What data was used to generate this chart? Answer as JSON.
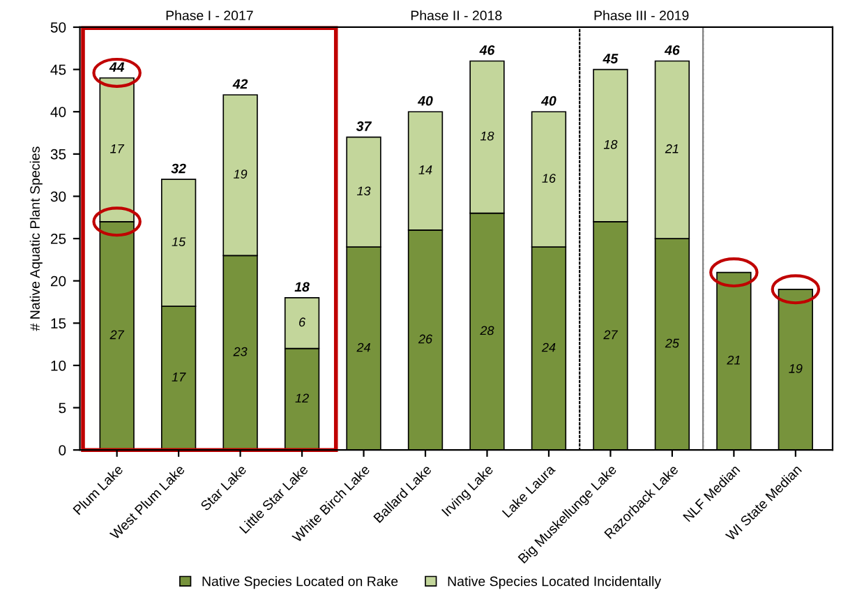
{
  "chart_data": {
    "type": "bar",
    "stacked": true,
    "ylabel": "# Native Aquatic Plant Species",
    "categories": [
      "Plum Lake",
      "West Plum Lake",
      "Star Lake",
      "Little Star Lake",
      "White Birch Lake",
      "Ballard Lake",
      "Irving Lake",
      "Lake Laura",
      "Big Muskellunge Lake",
      "Razorback Lake",
      "NLF Median",
      "WI State Median"
    ],
    "series": [
      {
        "name": "Native Species Located on Rake",
        "color": "#77933c",
        "values": [
          27,
          17,
          23,
          12,
          24,
          26,
          28,
          24,
          27,
          25,
          21,
          19
        ]
      },
      {
        "name": "Native Species Located Incidentally",
        "color": "#c3d69b",
        "values": [
          17,
          15,
          19,
          6,
          13,
          14,
          18,
          16,
          18,
          21,
          null,
          null
        ]
      }
    ],
    "data_labels": true,
    "totals": [
      "44",
      "32",
      "42",
      "18",
      "37",
      "40",
      "46",
      "40",
      "45",
      "46",
      null,
      null
    ],
    "ylim": [
      0,
      50
    ],
    "yticks": [
      0,
      5,
      10,
      15,
      20,
      25,
      30,
      35,
      40,
      45,
      50
    ],
    "annotations": [
      "Phase I - 2017",
      "Phase II - 2018",
      "Phase III - 2019"
    ],
    "legend": "bottom",
    "grid": false
  }
}
